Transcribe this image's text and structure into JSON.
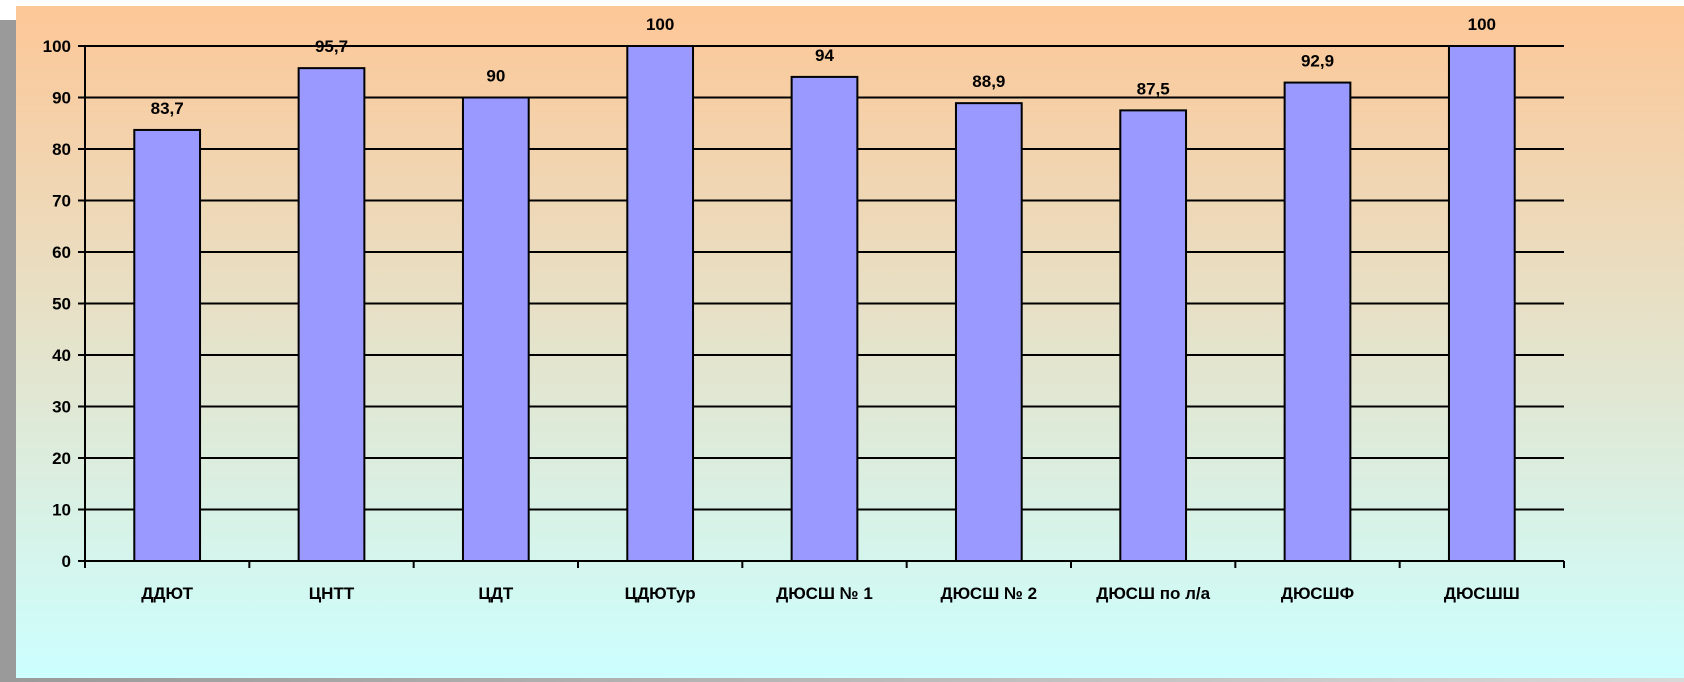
{
  "chart_data": {
    "type": "bar",
    "title": "",
    "xlabel": "",
    "ylabel": "",
    "categories": [
      "ДДЮТ",
      "ЦНТТ",
      "ЦДТ",
      "ЦДЮТур",
      "ДЮСШ № 1",
      "ДЮСШ № 2",
      "ДЮСШ по л/а",
      "ДЮСШФ",
      "ДЮСШШ"
    ],
    "values": [
      83.7,
      95.7,
      90,
      100,
      94,
      88.9,
      87.5,
      92.9,
      100
    ],
    "value_labels": [
      "83,7",
      "95,7",
      "90",
      "100",
      "94",
      "88,9",
      "87,5",
      "92,9",
      "100"
    ],
    "ylim": [
      0,
      100
    ],
    "yticks": [
      0,
      10,
      20,
      30,
      40,
      50,
      60,
      70,
      80,
      90,
      100
    ],
    "grid": true,
    "legend": "none",
    "colors": {
      "bar_fill": "#9999ff",
      "bar_stroke": "#000000",
      "gridline": "#000000",
      "background_top": "#fdc797",
      "background_bottom": "#ccffff",
      "frame_shadow": "#7f7f7f"
    }
  }
}
